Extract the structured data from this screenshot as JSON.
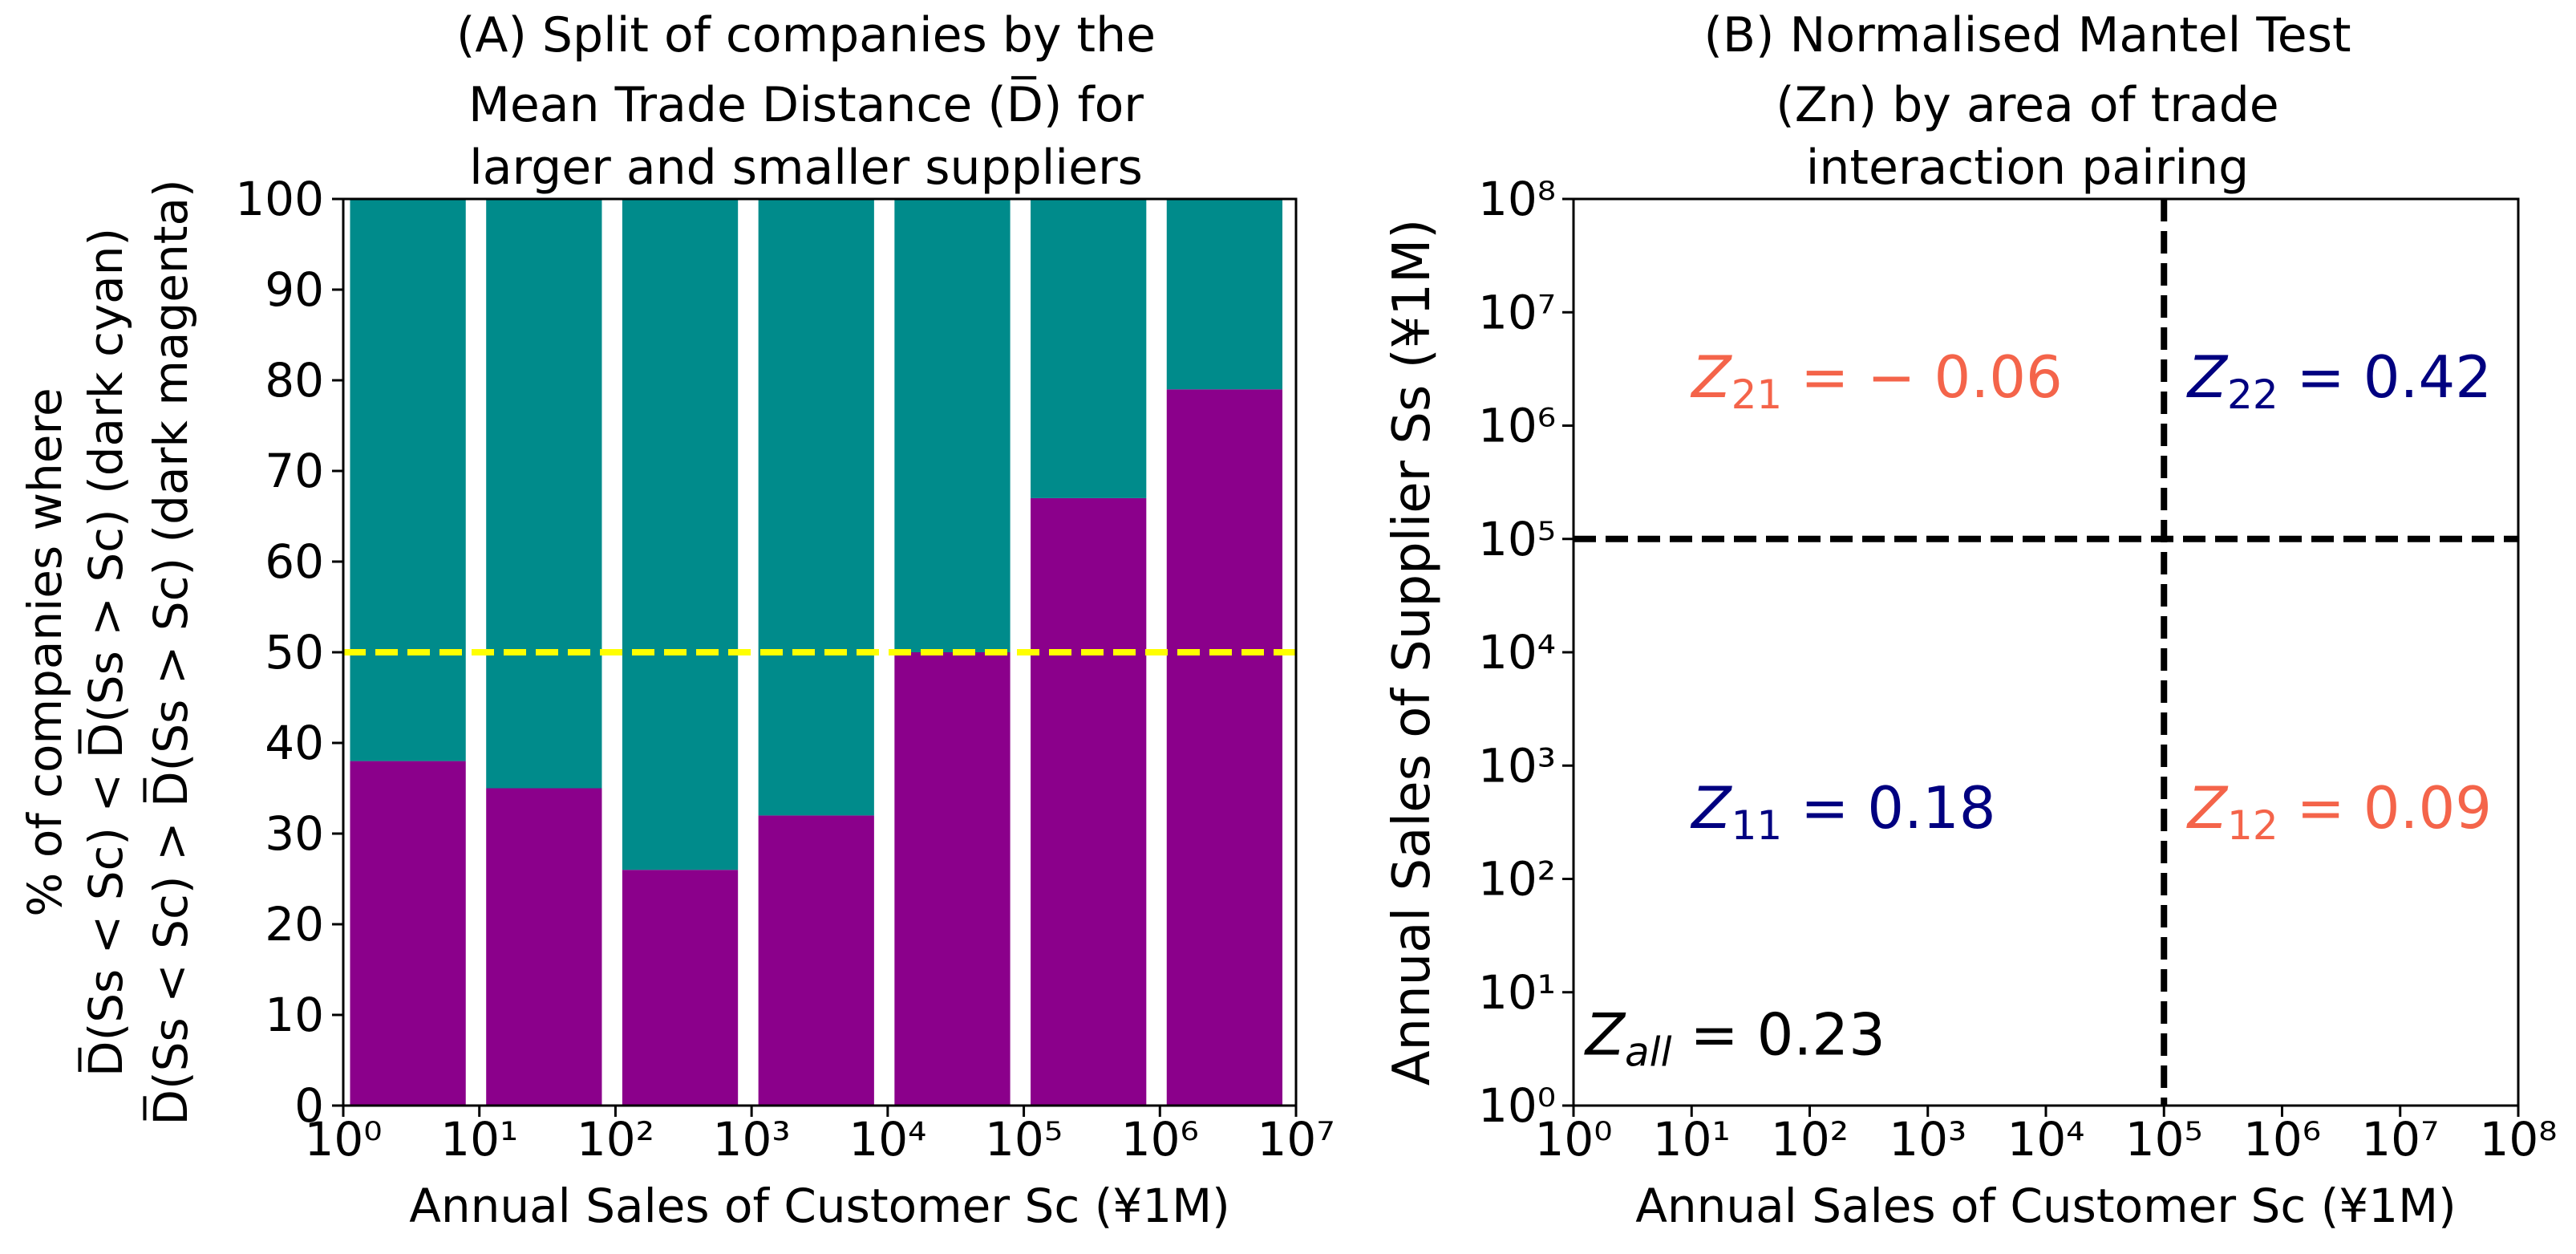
{
  "chart_data": [
    {
      "type": "bar",
      "stacked": true,
      "title_lines": [
        "(A) Split of companies by the",
        "Mean Trade Distance (D̅) for",
        "larger and smaller suppliers"
      ],
      "xlabel": "Annual Sales of Customer Sc (¥1M)",
      "ylabel_lines": [
        "% of companies where",
        "D̅(Ss < Sc) < D̅(Ss > Sc) (dark cyan)",
        "D̅(Ss < Sc) > D̅(Ss > Sc) (dark magenta)"
      ],
      "xscale": "log",
      "xlim_exp": [
        0,
        7
      ],
      "x_tick_labels": [
        "10⁰",
        "10¹",
        "10²",
        "10³",
        "10⁴",
        "10⁵",
        "10⁶",
        "10⁷"
      ],
      "ylim": [
        0,
        100
      ],
      "y_ticks": [
        0,
        10,
        20,
        30,
        40,
        50,
        60,
        70,
        80,
        90,
        100
      ],
      "bin_exponents": [
        [
          0,
          1
        ],
        [
          1,
          2
        ],
        [
          2,
          3
        ],
        [
          3,
          4
        ],
        [
          4,
          5
        ],
        [
          5,
          6
        ],
        [
          6,
          7
        ]
      ],
      "series": [
        {
          "name": "dark magenta",
          "color": "#8b008b",
          "values": [
            38,
            35,
            26,
            32,
            50,
            67,
            79
          ]
        },
        {
          "name": "dark cyan",
          "color": "#008b8b",
          "values": [
            62,
            65,
            74,
            68,
            50,
            33,
            21
          ]
        }
      ],
      "reference_line": {
        "y": 50,
        "color": "#ffff00",
        "style": "dashed"
      }
    },
    {
      "type": "scatter",
      "title_lines": [
        "(B) Normalised Mantel Test",
        "(Zn) by area of trade",
        "interaction pairing"
      ],
      "xlabel": "Annual Sales of Customer Sc (¥1M)",
      "ylabel": "Annual Sales of Supplier Ss (¥1M)",
      "xscale": "log",
      "yscale": "log",
      "xlim_exp": [
        0,
        8
      ],
      "ylim_exp": [
        0,
        8
      ],
      "x_tick_labels": [
        "10⁰",
        "10¹",
        "10²",
        "10³",
        "10⁴",
        "10⁵",
        "10⁶",
        "10⁷",
        "10⁸"
      ],
      "y_tick_labels": [
        "10⁰",
        "10¹",
        "10²",
        "10³",
        "10⁴",
        "10⁵",
        "10⁶",
        "10⁷",
        "10⁸"
      ],
      "divider_x_exp": 5,
      "divider_y_exp": 5,
      "annotations": [
        {
          "sym": "Z",
          "sub": "21",
          "text": " = − 0.06",
          "color": "#f4644a",
          "x_exp": 1,
          "y_exp": 6.25
        },
        {
          "sym": "Z",
          "sub": "22",
          "text": " = 0.42",
          "color": "#000080",
          "x_exp": 5.2,
          "y_exp": 6.25
        },
        {
          "sym": "Z",
          "sub": "11",
          "text": " = 0.18",
          "color": "#000080",
          "x_exp": 1,
          "y_exp": 2.45
        },
        {
          "sym": "Z",
          "sub": "12",
          "text": " = 0.09",
          "color": "#f4644a",
          "x_exp": 5.2,
          "y_exp": 2.45
        },
        {
          "sym": "Z",
          "sub": "all",
          "text": " = 0.23",
          "color": "#000000",
          "x_exp": 0.1,
          "y_exp": 0.45
        }
      ]
    }
  ]
}
